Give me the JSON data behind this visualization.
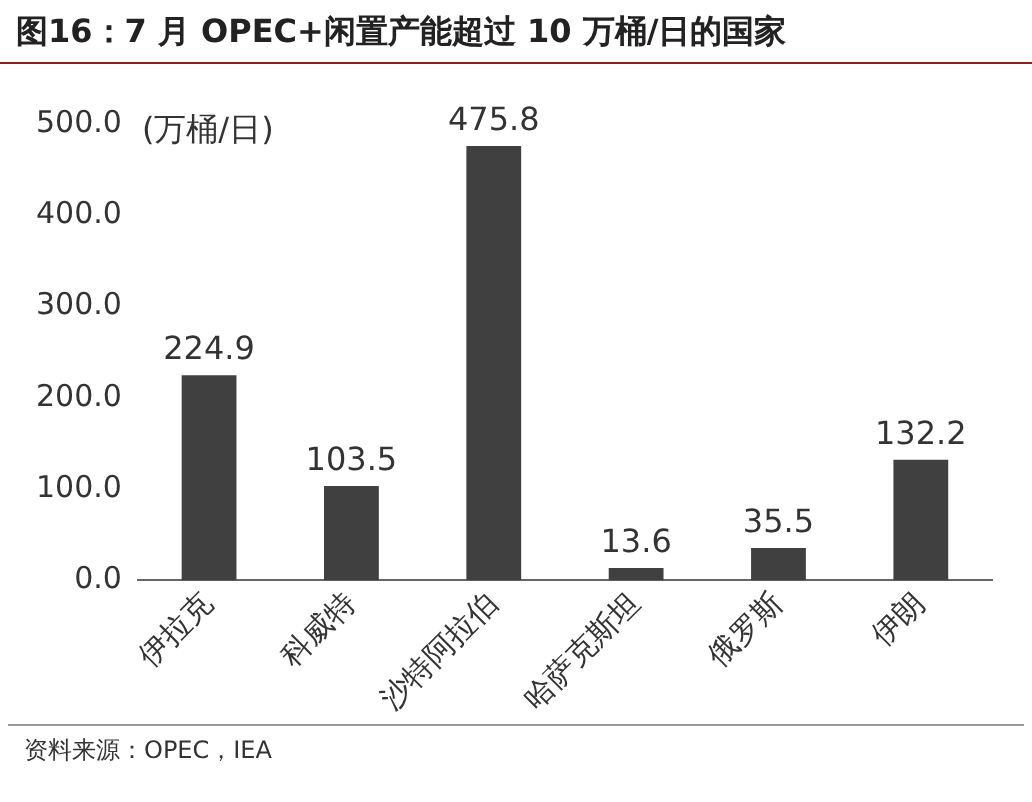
{
  "chart_data": {
    "type": "bar",
    "title": "图16：7 月 OPEC+闲置产能超过 10 万桶/日的国家",
    "ylabel": "(万桶/日)",
    "categories": [
      "伊拉克",
      "科威特",
      "沙特阿拉伯",
      "哈萨克斯坦",
      "俄罗斯",
      "伊朗"
    ],
    "values": [
      224.9,
      103.5,
      475.8,
      13.6,
      35.5,
      132.2
    ],
    "color": "#404040",
    "ylim": [
      0,
      500
    ],
    "yticks": [
      {
        "value": 0,
        "label": "0.0"
      },
      {
        "value": 100,
        "label": "100.0"
      },
      {
        "value": 200,
        "label": "200.0"
      },
      {
        "value": 300,
        "label": "300.0"
      },
      {
        "value": 400,
        "label": "400.0"
      },
      {
        "value": 500,
        "label": "500.0"
      }
    ],
    "grid": false,
    "legend": false,
    "data_labels": true,
    "annotations": [
      "资料来源：OPEC，IEA"
    ]
  }
}
